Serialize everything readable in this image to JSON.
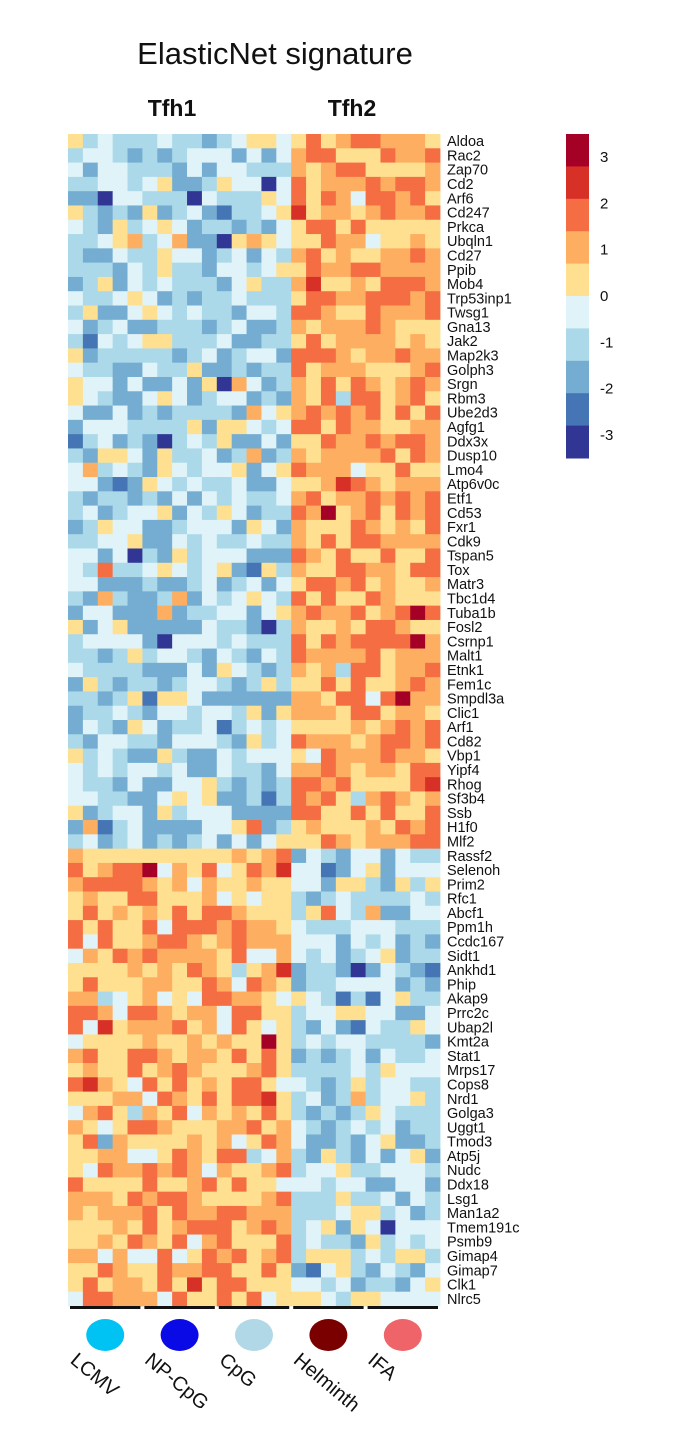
{
  "chart_data": {
    "type": "heatmap",
    "title": "ElasticNet signature",
    "column_groups": [
      "Tfh1",
      "Tfh2"
    ],
    "conditions": [
      {
        "name": "LCMV",
        "color": "#00c3f4",
        "columns": 5
      },
      {
        "name": "NP-CpG",
        "color": "#0a0ae6",
        "columns": 5
      },
      {
        "name": "CpG",
        "color": "#b0d8e6",
        "columns": 5
      },
      {
        "name": "Helminth",
        "color": "#7a0000",
        "columns": 5
      },
      {
        "name": "IFA",
        "color": "#ee6468",
        "columns": 5
      }
    ],
    "genes": [
      "Aldoa",
      "Rac2",
      "Zap70",
      "Cd2",
      "Arf6",
      "Cd247",
      "Prkca",
      "Ubqln1",
      "Cd27",
      "Ppib",
      "Mob4",
      "Trp53inp1",
      "Twsg1",
      "Gna13",
      "Jak2",
      "Map2k3",
      "Golph3",
      "Srgn",
      "Rbm3",
      "Ube2d3",
      "Agfg1",
      "Ddx3x",
      "Dusp10",
      "Lmo4",
      "Atp6v0c",
      "Etf1",
      "Cd53",
      "Fxr1",
      "Cdk9",
      "Tspan5",
      "Tox",
      "Matr3",
      "Tbc1d4",
      "Tuba1b",
      "Fosl2",
      "Csrnp1",
      "Malt1",
      "Etnk1",
      "Fem1c",
      "Smpdl3a",
      "Clic1",
      "Arf1",
      "Cd82",
      "Vbp1",
      "Yipf4",
      "Rhog",
      "Sf3b4",
      "Ssb",
      "H1f0",
      "Mlf2",
      "Rassf2",
      "Selenoh",
      "Prim2",
      "Rfc1",
      "Abcf1",
      "Ppm1h",
      "Ccdc167",
      "Sidt1",
      "Ankhd1",
      "Phip",
      "Akap9",
      "Prrc2c",
      "Ubap2l",
      "Kmt2a",
      "Stat1",
      "Mrps17",
      "Cops8",
      "Nrd1",
      "Golga3",
      "Uggt1",
      "Tmod3",
      "Atp5j",
      "Nudc",
      "Ddx18",
      "Lsg1",
      "Man1a2",
      "Tmem191c",
      "Psmb9",
      "Gimap4",
      "Gimap7",
      "Clk1",
      "Nlrc5"
    ],
    "up_in_tfh2_gene_count": 50,
    "up_in_tfh1_gene_count": 32,
    "color_scale": {
      "range": [
        -3.5,
        3.5
      ],
      "ticks": [
        3,
        2,
        1,
        0,
        -1,
        -2,
        -3
      ],
      "colors": [
        "#a50026",
        "#d73027",
        "#f46d43",
        "#fdae61",
        "#fee090",
        "#e0f3f8",
        "#abd9e9",
        "#74add1",
        "#4575b4",
        "#313695"
      ]
    }
  }
}
